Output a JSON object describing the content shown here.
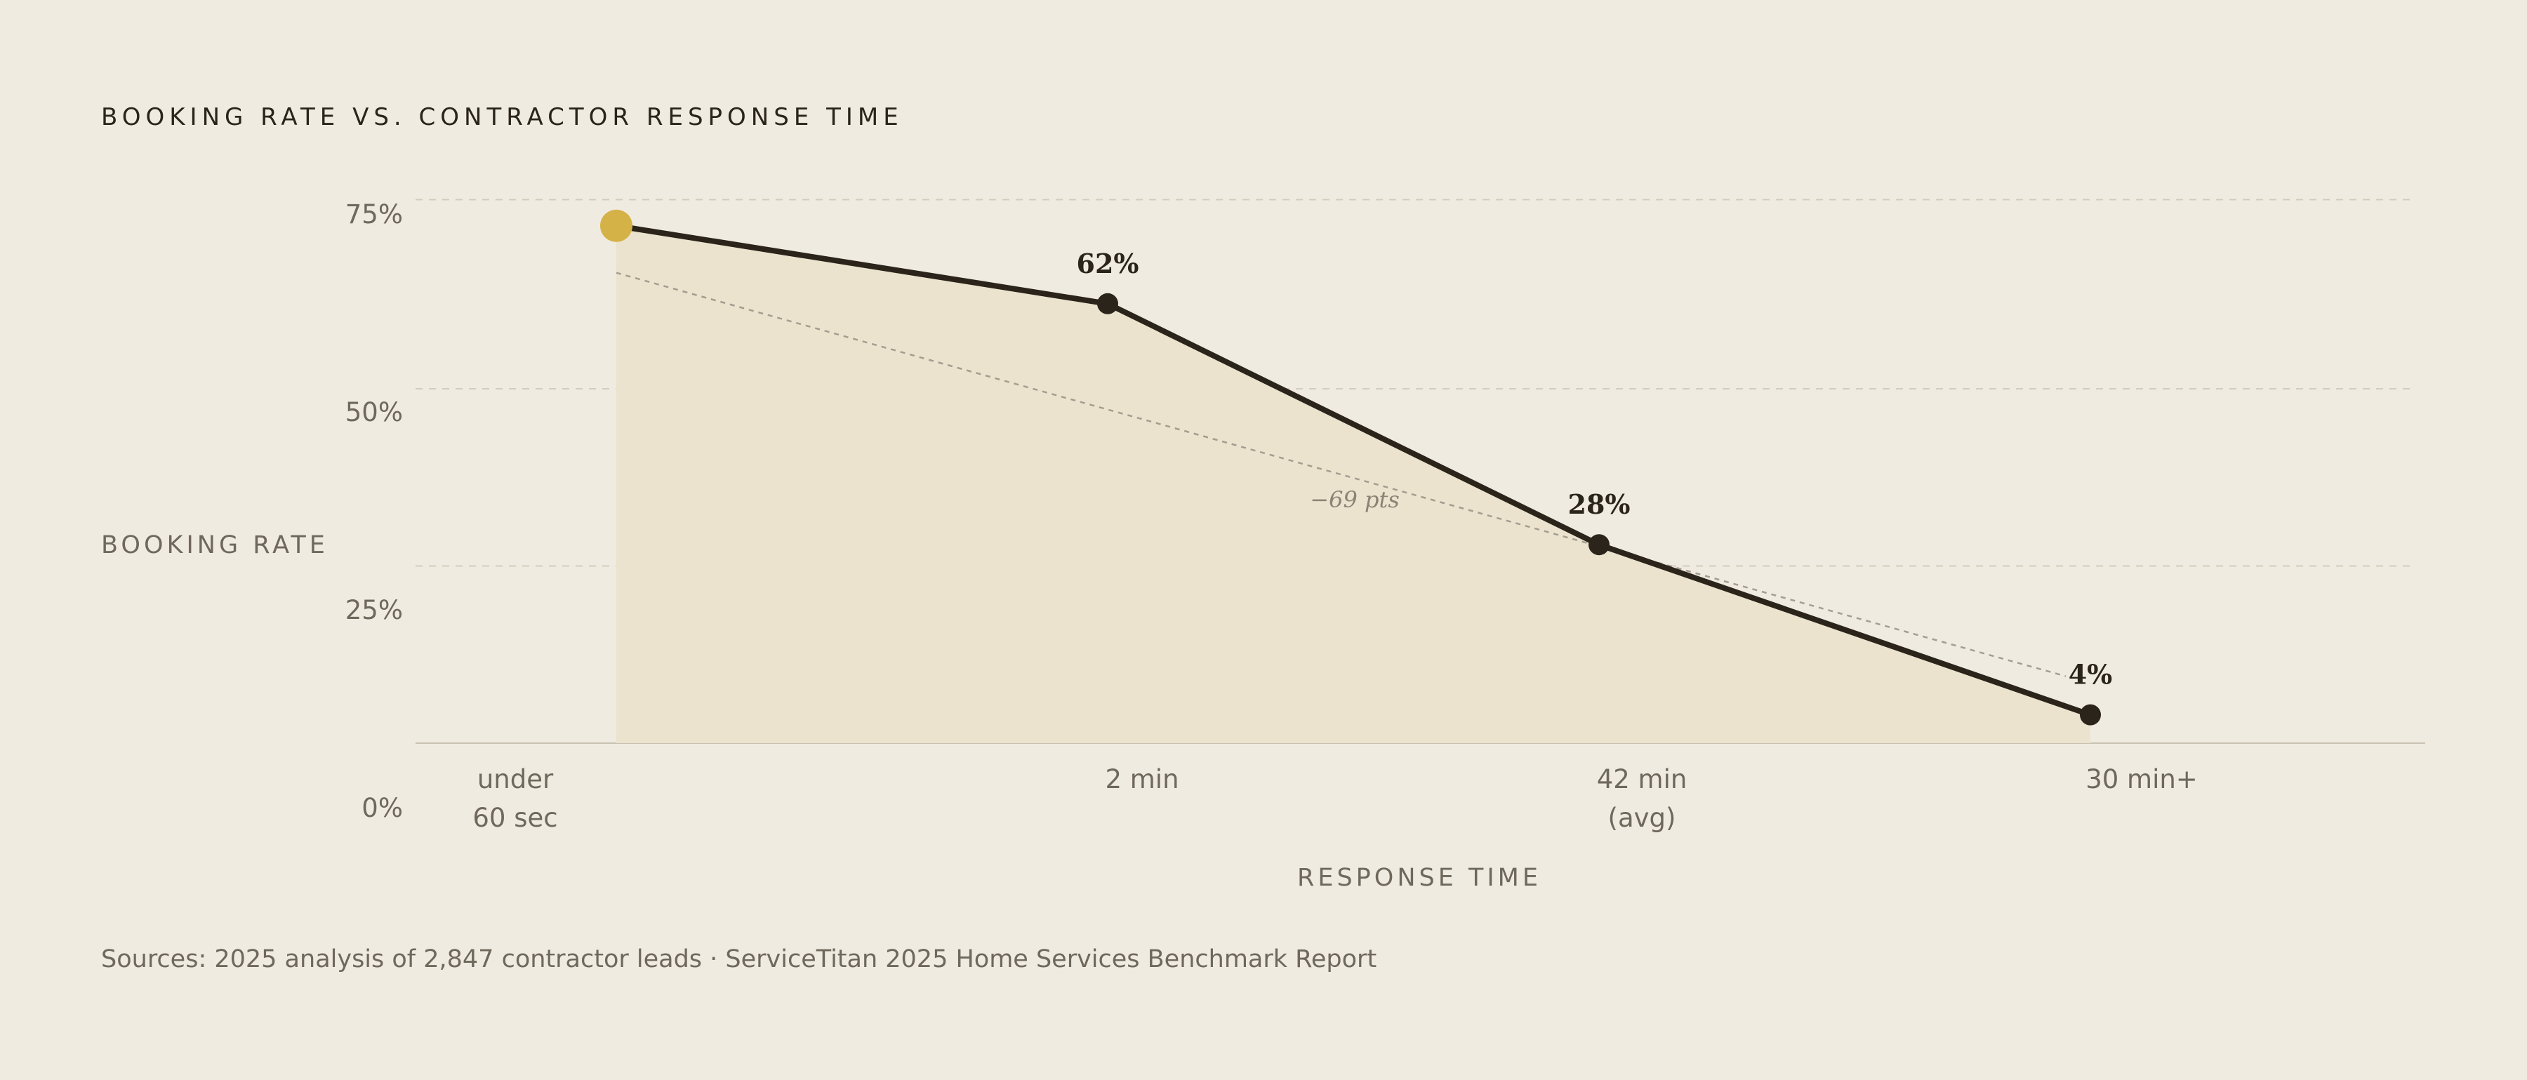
{
  "chart_data": {
    "type": "line",
    "title": "BOOKING RATE VS. CONTRACTOR RESPONSE TIME",
    "xlabel": "RESPONSE TIME",
    "ylabel": "BOOKING RATE",
    "categories": [
      [
        "under",
        "60 sec"
      ],
      [
        "2 min"
      ],
      [
        "42 min",
        "(avg)"
      ],
      [
        "30 min+"
      ]
    ],
    "yticks": [
      "0%",
      "25%",
      "50%",
      "75%"
    ],
    "ylim": [
      0,
      75
    ],
    "grid": true,
    "series": [
      {
        "values": [
          73,
          62,
          28,
          4
        ],
        "labels": [
          "",
          "62%",
          "28%",
          "4%"
        ],
        "line_color": "#2a241b",
        "fill_color": "#ebe3cd",
        "highlight_color": "#d4b248"
      }
    ],
    "annotations": [
      {
        "text": "−69 pts",
        "style": "dashed-trend-line"
      }
    ],
    "source": "Sources: 2025 analysis of 2,847 contractor leads · ServiceTitan 2025 Home Services Benchmark Report"
  }
}
